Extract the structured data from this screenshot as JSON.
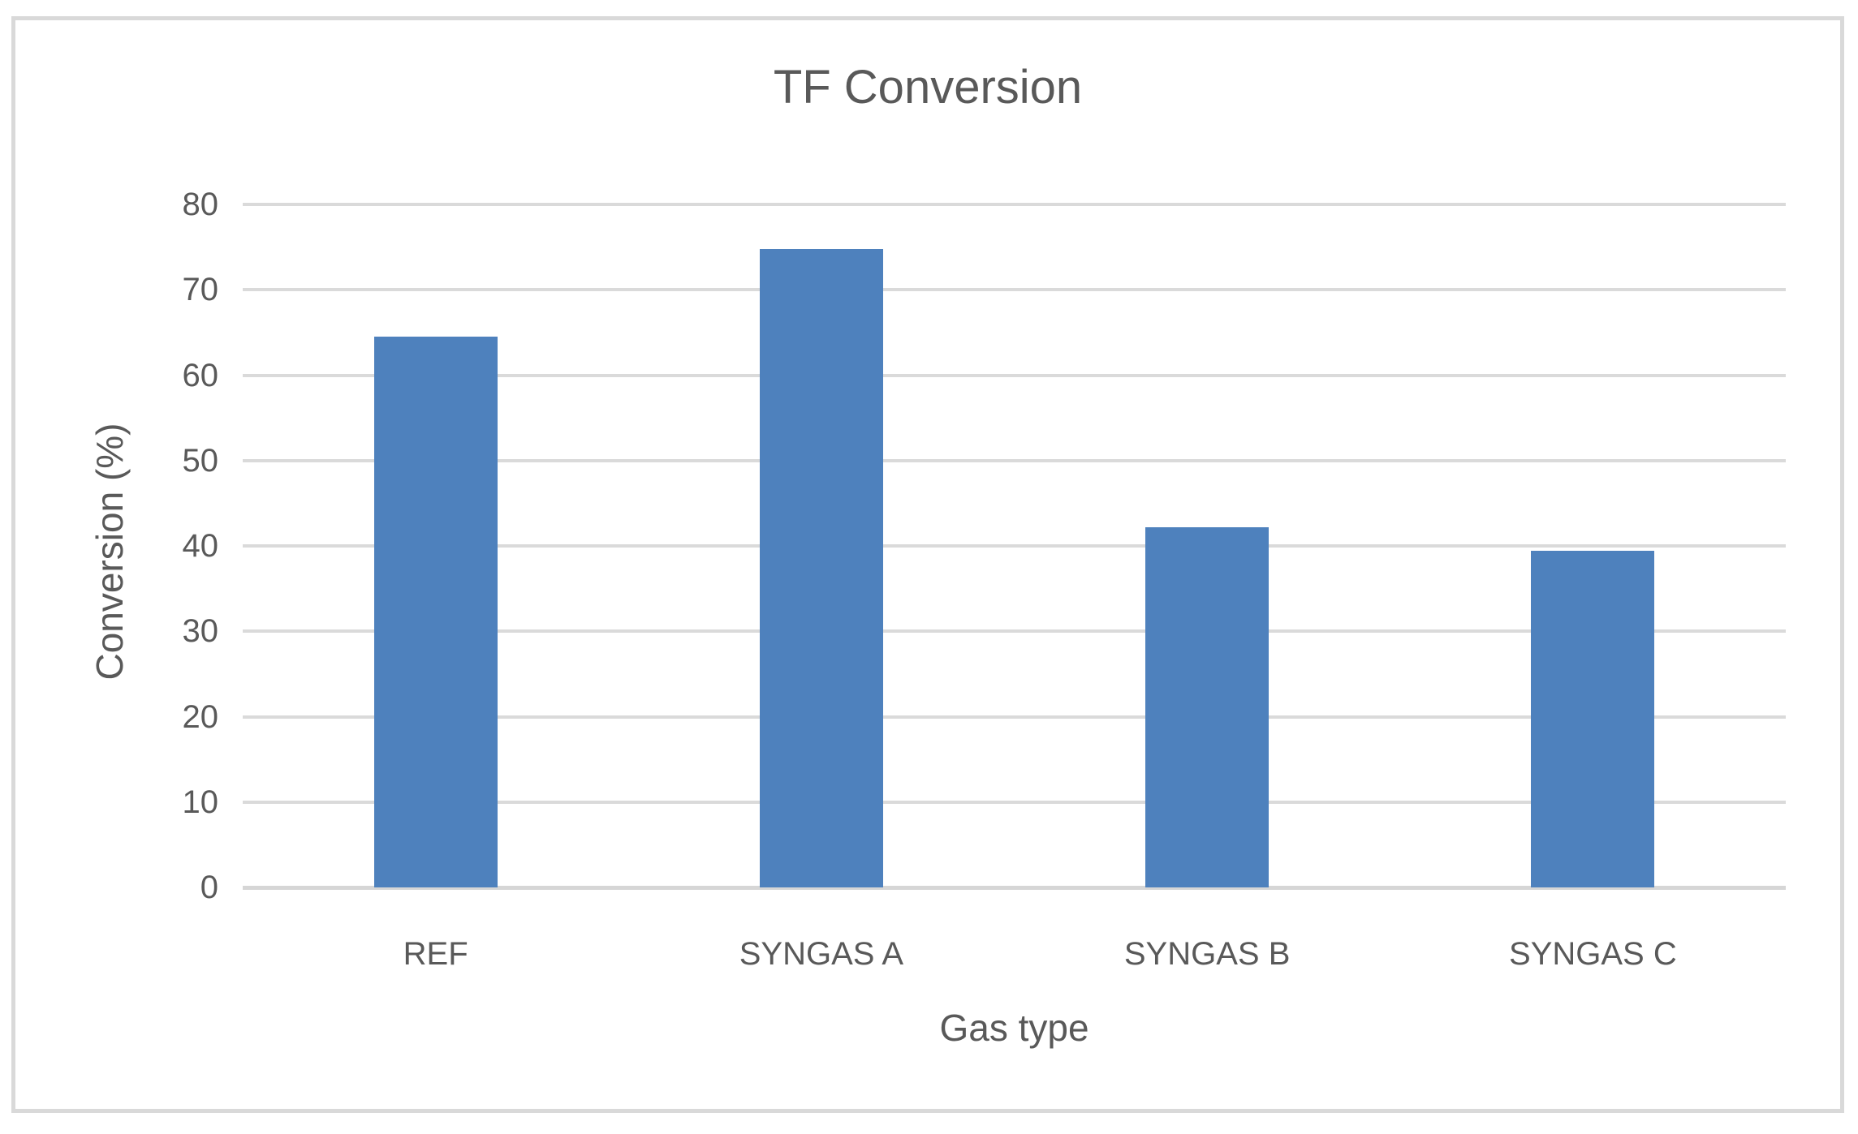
{
  "chart_data": {
    "type": "bar",
    "title": "TF Conversion",
    "xlabel": "Gas type",
    "ylabel": "Conversion (%)",
    "categories": [
      "REF",
      "SYNGAS A",
      "SYNGAS B",
      "SYNGAS C"
    ],
    "values": [
      64.5,
      74.8,
      42.2,
      39.4
    ],
    "ylim": [
      0,
      80
    ],
    "yticks": [
      0,
      10,
      20,
      30,
      40,
      50,
      60,
      70,
      80
    ],
    "grid": "horizontal-gridlines-on",
    "legend": "none",
    "colors": {
      "bar": "#4e81bd",
      "gridline": "#dadada",
      "axis_line": "#d6d6d6",
      "text": "#595959",
      "chart_border": "#d9d9d9",
      "background": "#ffffff"
    }
  }
}
